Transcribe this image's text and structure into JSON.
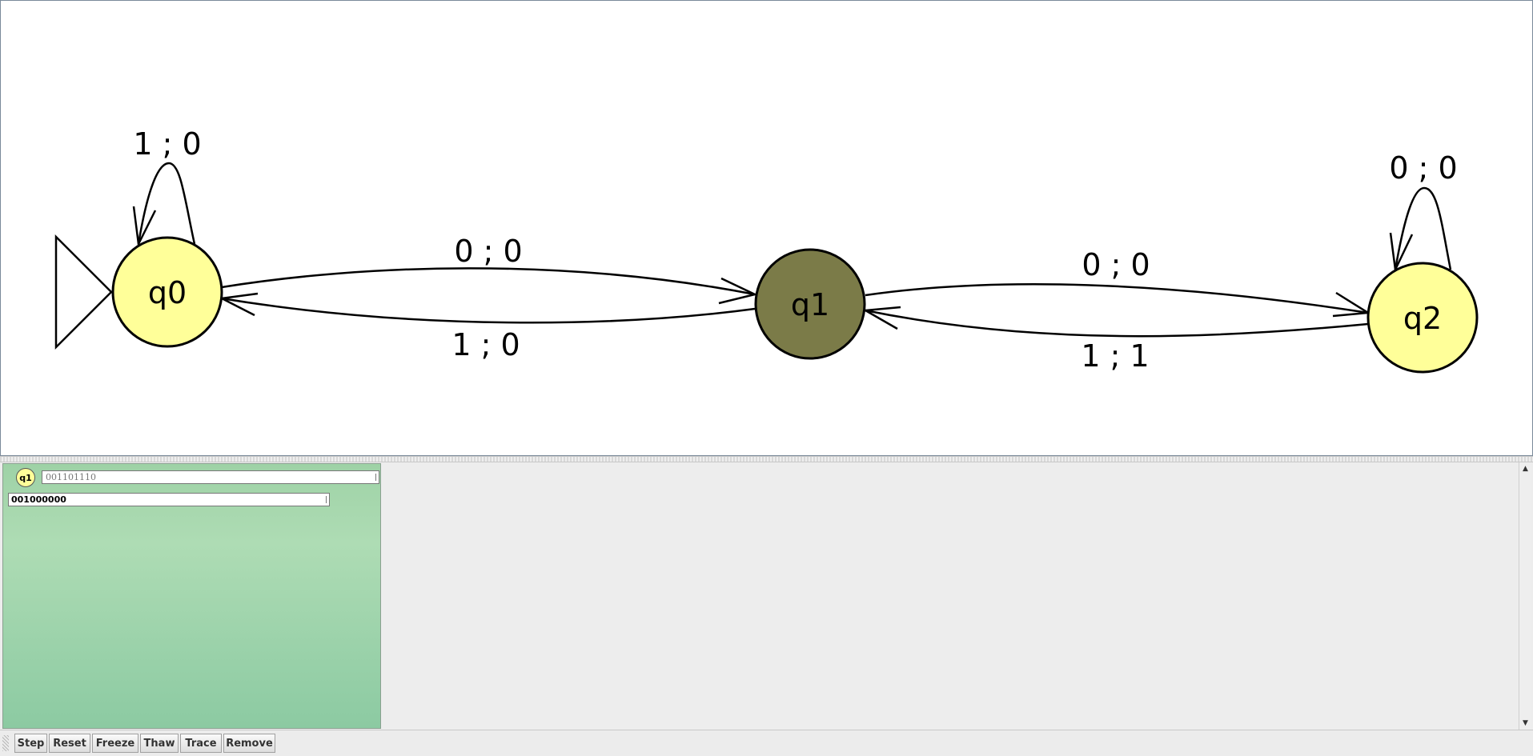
{
  "automaton": {
    "states": [
      {
        "id": "q0",
        "label": "q0",
        "fill": "#ffff99",
        "initial": true
      },
      {
        "id": "q1",
        "label": "q1",
        "fill": "#7b7b48",
        "initial": false
      },
      {
        "id": "q2",
        "label": "q2",
        "fill": "#ffff99",
        "initial": false
      }
    ],
    "transitions": [
      {
        "from": "q0",
        "to": "q0",
        "label": "1 ; 0"
      },
      {
        "from": "q0",
        "to": "q1",
        "label": "0 ; 0"
      },
      {
        "from": "q1",
        "to": "q0",
        "label": "1 ; 0"
      },
      {
        "from": "q1",
        "to": "q2",
        "label": "0 ; 0"
      },
      {
        "from": "q2",
        "to": "q1",
        "label": "1 ; 1"
      },
      {
        "from": "q2",
        "to": "q2",
        "label": "0 ; 0"
      }
    ]
  },
  "simulator": {
    "current_state": "q1",
    "input_remaining": "001101110",
    "output": "001000000"
  },
  "toolbar": {
    "buttons": [
      "Step",
      "Reset",
      "Freeze",
      "Thaw",
      "Trace",
      "Remove"
    ]
  },
  "scroll": {
    "up_glyph": "▲",
    "down_glyph": "▼"
  }
}
